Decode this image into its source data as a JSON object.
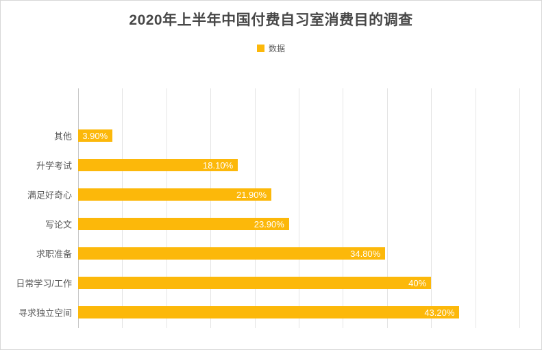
{
  "chart": {
    "title": "2020年上半年中国付费自习室消费目的调查",
    "legend_label": "数据"
  },
  "chart_data": {
    "type": "bar",
    "orientation": "horizontal",
    "title": "2020年上半年中国付费自习室消费目的调查",
    "legend": [
      "数据"
    ],
    "legend_position": "top",
    "categories": [
      "其他",
      "升学考试",
      "满足好奇心",
      "写论文",
      "求职准备",
      "日常学习/工作",
      "寻求独立空间"
    ],
    "values": [
      3.9,
      18.1,
      21.9,
      23.9,
      34.8,
      40,
      43.2
    ],
    "value_labels": [
      "3.90%",
      "18.10%",
      "21.90%",
      "23.90%",
      "34.80%",
      "40%",
      "43.20%"
    ],
    "xlabel": "",
    "ylabel": "",
    "xlim": [
      0,
      50
    ],
    "grid": true,
    "gridline_interval": 5,
    "bar_color": "#FCB80A",
    "value_label_color": "#FFFFFF",
    "axis_text_color": "#595959",
    "title_color": "#474747"
  }
}
